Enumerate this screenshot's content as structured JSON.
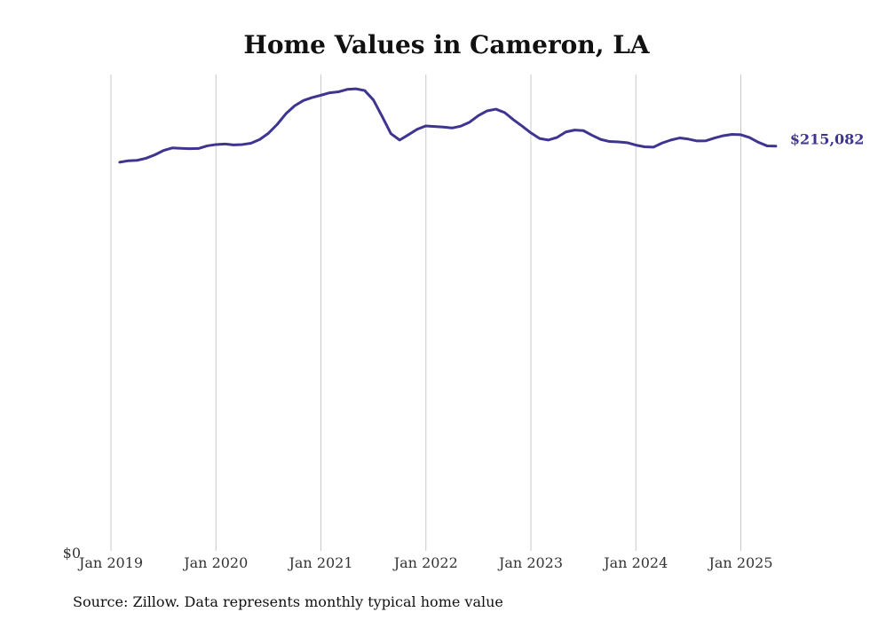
{
  "chart_data": {
    "type": "line",
    "title": "Home Values in Cameron, LA",
    "source_note": "Source: Zillow. Data represents monthly typical home value",
    "xlabel": "",
    "ylabel": "",
    "x_ticks": [
      "Jan 2019",
      "Jan 2020",
      "Jan 2021",
      "Jan 2022",
      "Jan 2023",
      "Jan 2024",
      "Jan 2025"
    ],
    "y_ticks": [
      {
        "value": 0,
        "label": "$0"
      }
    ],
    "ylim": [
      0,
      255000
    ],
    "grid": "vertical",
    "line_color": "#3d3590",
    "end_label": "$215,082",
    "series": [
      {
        "x": [
          "2019-02",
          "2019-03",
          "2019-04",
          "2019-05",
          "2019-06",
          "2019-07",
          "2019-08",
          "2019-09",
          "2019-10",
          "2019-11",
          "2019-12",
          "2020-01",
          "2020-02",
          "2020-03",
          "2020-04",
          "2020-05",
          "2020-06",
          "2020-07",
          "2020-08",
          "2020-09",
          "2020-10",
          "2020-11",
          "2020-12",
          "2021-01",
          "2021-02",
          "2021-03",
          "2021-04",
          "2021-05",
          "2021-06",
          "2021-07",
          "2021-08",
          "2021-09",
          "2021-10",
          "2021-11",
          "2021-12",
          "2022-01",
          "2022-02",
          "2022-03",
          "2022-04",
          "2022-05",
          "2022-06",
          "2022-07",
          "2022-08",
          "2022-09",
          "2022-10",
          "2022-11",
          "2022-12",
          "2023-01",
          "2023-02",
          "2023-03",
          "2023-04",
          "2023-05",
          "2023-06",
          "2023-07",
          "2023-08",
          "2023-09",
          "2023-10",
          "2023-11",
          "2023-12",
          "2024-01",
          "2024-02",
          "2024-03",
          "2024-04",
          "2024-05",
          "2024-06",
          "2024-07",
          "2024-08",
          "2024-09",
          "2024-10",
          "2024-11",
          "2024-12",
          "2025-01",
          "2025-02",
          "2025-03",
          "2025-04",
          "2025-05"
        ],
        "values": [
          206500,
          207300,
          207500,
          208600,
          210400,
          212700,
          214100,
          213900,
          213700,
          213800,
          215200,
          215900,
          216200,
          215700,
          215900,
          216600,
          218600,
          221900,
          226600,
          232300,
          236500,
          239300,
          240900,
          242100,
          243400,
          243900,
          245200,
          245500,
          244600,
          239600,
          230800,
          221700,
          218300,
          221100,
          224000,
          225800,
          225500,
          225200,
          224700,
          225700,
          227800,
          231300,
          233800,
          234700,
          232900,
          229100,
          225700,
          222100,
          219100,
          218300,
          219700,
          222600,
          223600,
          223300,
          220800,
          218600,
          217500,
          217300,
          216900,
          215600,
          214700,
          214500,
          216700,
          218300,
          219400,
          218800,
          217800,
          217900,
          219400,
          220600,
          221300,
          221100,
          219600,
          217100,
          215200,
          215082
        ]
      }
    ]
  }
}
